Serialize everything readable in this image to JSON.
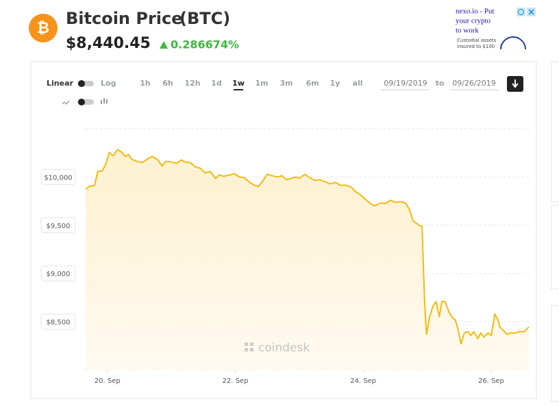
{
  "header": {
    "title": "Bitcoin Price",
    "ticker": "(BTC)",
    "price": "$8,440.45",
    "change": "0.286674%"
  },
  "ad": {
    "lines": [
      "nexo.io - Put",
      "your crypto",
      "to work"
    ],
    "fine_print": [
      "Custodial assets",
      "insured to $100"
    ]
  },
  "controls": {
    "scales": [
      "Linear",
      "Log"
    ],
    "ranges": [
      "1h",
      "6h",
      "12h",
      "1d",
      "1w",
      "1m",
      "3m",
      "6m",
      "1y",
      "all"
    ],
    "active_range": 4,
    "from": "09/19/2019",
    "to_label": "to",
    "to": "09/26/2019"
  },
  "watermark": "coindesk",
  "chart_data": {
    "type": "line",
    "color": "#f5b90f",
    "grid": true,
    "x": [
      19.66,
      19.71,
      19.8,
      19.85,
      19.92,
      19.98,
      20.03,
      20.09,
      20.16,
      20.23,
      20.28,
      20.33,
      20.38,
      20.46,
      20.54,
      20.62,
      20.7,
      20.79,
      20.86,
      20.91,
      21.0,
      21.08,
      21.16,
      21.21,
      21.3,
      21.37,
      21.45,
      21.53,
      21.61,
      21.69,
      21.75,
      21.82,
      21.91,
      21.98,
      22.07,
      22.14,
      22.23,
      22.3,
      22.36,
      22.42,
      22.5,
      22.57,
      22.66,
      22.73,
      22.8,
      22.87,
      22.95,
      23.0,
      23.09,
      23.16,
      23.25,
      23.32,
      23.41,
      23.48,
      23.57,
      23.64,
      23.73,
      23.8,
      23.89,
      23.97,
      24.05,
      24.13,
      24.18,
      24.27,
      24.34,
      24.43,
      24.5,
      24.59,
      24.66,
      24.72,
      24.78,
      24.88,
      24.92,
      24.96,
      24.99,
      25.04,
      25.09,
      25.14,
      25.19,
      25.23,
      25.28,
      25.34,
      25.39,
      25.44,
      25.48,
      25.53,
      25.58,
      25.64,
      25.68,
      25.73,
      25.79,
      25.84,
      25.89,
      25.95,
      26.0,
      26.06,
      26.11,
      26.14,
      26.19,
      26.25,
      26.3,
      26.38,
      26.44,
      26.52,
      26.59
    ],
    "values": [
      9872,
      9901,
      9915,
      10057,
      10064,
      10142,
      10255,
      10220,
      10284,
      10255,
      10213,
      10234,
      10184,
      10163,
      10149,
      10184,
      10213,
      10177,
      10113,
      10163,
      10156,
      10142,
      10177,
      10156,
      10149,
      10106,
      10092,
      10043,
      10057,
      9986,
      10021,
      10007,
      10021,
      10035,
      10000,
      9993,
      9943,
      9915,
      9901,
      9950,
      10028,
      10014,
      10000,
      10014,
      9972,
      9986,
      10000,
      9986,
      10028,
      9993,
      9965,
      9972,
      9950,
      9929,
      9943,
      9915,
      9915,
      9901,
      9844,
      9809,
      9759,
      9716,
      9702,
      9731,
      9723,
      9759,
      9738,
      9745,
      9731,
      9667,
      9546,
      9496,
      9489,
      8709,
      8369,
      8553,
      8660,
      8709,
      8553,
      8709,
      8709,
      8603,
      8546,
      8518,
      8426,
      8270,
      8383,
      8397,
      8355,
      8397,
      8326,
      8383,
      8340,
      8383,
      8355,
      8582,
      8511,
      8440,
      8411,
      8369,
      8383,
      8383,
      8397,
      8397,
      8447
    ],
    "xlim": [
      19.66,
      26.59
    ],
    "xticks": [
      {
        "value": 20,
        "label": "20. Sep"
      },
      {
        "value": 22,
        "label": "22. Sep"
      },
      {
        "value": 24,
        "label": "24. Sep"
      },
      {
        "value": 26,
        "label": "26. Sep"
      }
    ],
    "ylim": [
      8000,
      10500
    ],
    "yticks": [
      {
        "value": 8500,
        "label": "$8,500"
      },
      {
        "value": 9000,
        "label": "$9,000"
      },
      {
        "value": 9500,
        "label": "$9,500"
      },
      {
        "value": 10000,
        "label": "$10,000"
      }
    ]
  }
}
